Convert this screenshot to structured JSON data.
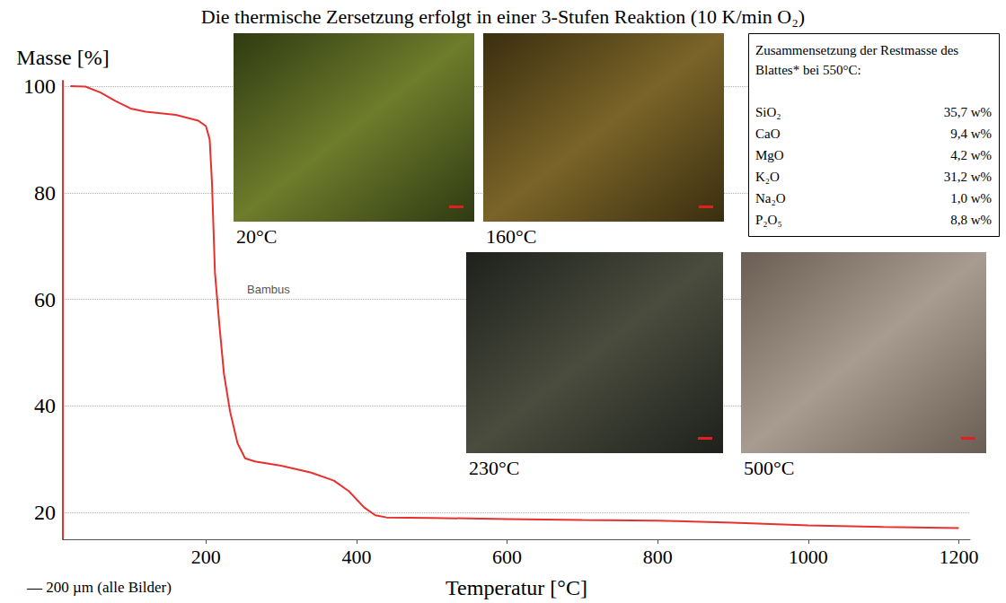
{
  "chart_data": {
    "type": "line",
    "title": "Die thermische Zersetzung erfolgt in einer 3-Stufen Reaktion (10 K/min O₂)",
    "x_label": "Temperatur [°C]",
    "y_label": "Masse [%]",
    "annotation": "Bambus",
    "scale_note": "— 200 µm (alle Bilder)",
    "x": [
      20,
      40,
      60,
      80,
      100,
      120,
      160,
      190,
      200,
      205,
      208,
      212,
      218,
      224,
      232,
      242,
      252,
      265,
      300,
      340,
      370,
      390,
      410,
      425,
      440,
      500,
      600,
      700,
      800,
      900,
      1000,
      1100,
      1200
    ],
    "values": [
      100,
      99.9,
      98.8,
      97.2,
      95.8,
      95.2,
      94.6,
      93.5,
      92.5,
      90,
      82,
      65,
      55,
      46,
      39,
      33,
      30.2,
      29.6,
      28.8,
      27.5,
      26,
      24,
      21,
      19.5,
      19.1,
      19,
      18.8,
      18.6,
      18.5,
      18.1,
      17.6,
      17.3,
      17.1
    ],
    "color": "#e8312f",
    "xlim": [
      10,
      1215
    ],
    "xticks": [
      200,
      400,
      600,
      800,
      1000,
      1200
    ],
    "ylim": [
      15,
      101
    ],
    "yticks": [
      20,
      40,
      60,
      80,
      100
    ],
    "grid": true,
    "images": [
      {
        "label": "20°C"
      },
      {
        "label": "160°C"
      },
      {
        "label": "230°C"
      },
      {
        "label": "500°C"
      }
    ],
    "table": {
      "title": "Zusammensetzung der Restmasse des Blattes* bei 550°C:",
      "rows": [
        [
          "SiO₂",
          "35,7 w%"
        ],
        [
          "CaO",
          "9,4 w%"
        ],
        [
          "MgO",
          "4,2 w%"
        ],
        [
          "K₂O",
          "31,2 w%"
        ],
        [
          "Na₂O",
          "1,0 w%"
        ],
        [
          "P₂O₅",
          "8,8 w%"
        ]
      ]
    }
  }
}
